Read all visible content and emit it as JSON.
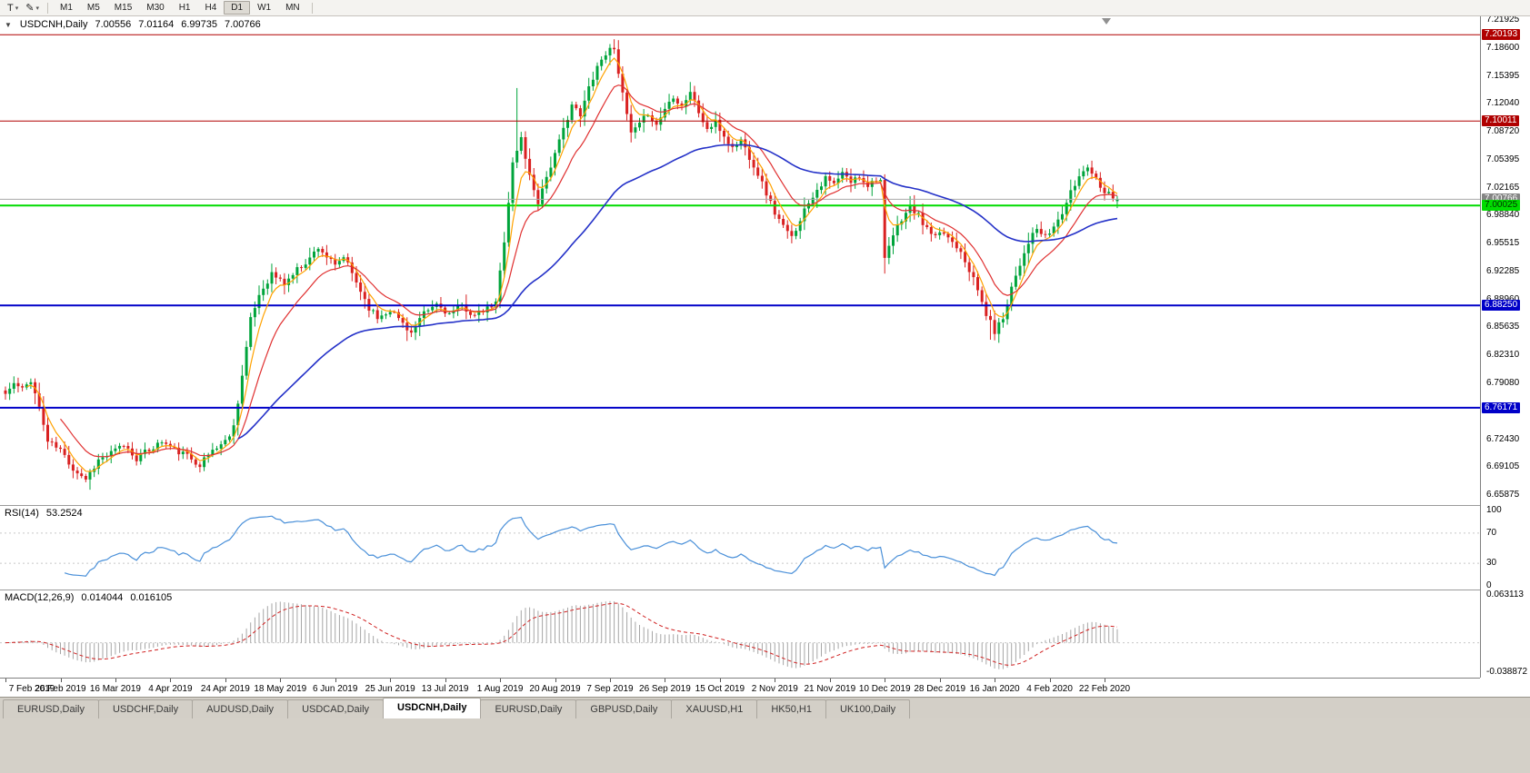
{
  "toolbar": {
    "tool_buttons": [
      {
        "label": "T",
        "name": "text-cursor-tool"
      },
      {
        "label": "✎",
        "name": "drawing-tools"
      }
    ],
    "timeframes": [
      "M1",
      "M5",
      "M15",
      "M30",
      "H1",
      "H4",
      "D1",
      "W1",
      "MN"
    ],
    "active_timeframe": "D1"
  },
  "chart": {
    "title": {
      "symbol_period": "USDCNH,Daily",
      "open": "7.00556",
      "high": "7.01164",
      "low": "6.99735",
      "close": "7.00766"
    },
    "price_axis_ticks": [
      "7.21925",
      "7.18600",
      "7.15395",
      "7.12040",
      "7.08720",
      "7.05395",
      "7.02165",
      "6.98840",
      "6.95515",
      "6.92285",
      "6.88960",
      "6.85635",
      "6.82310",
      "6.79080",
      "6.75755",
      "6.72430",
      "6.69105",
      "6.65875"
    ],
    "hlines": [
      {
        "price": 7.20193,
        "label": "7.20193",
        "color": "#B00000",
        "width": 1,
        "style": "solid",
        "label_bg": "#B00000",
        "label_fg": "#FFFFFF"
      },
      {
        "price": 7.10011,
        "label": "7.10011",
        "color": "#B00000",
        "width": 1,
        "style": "solid",
        "label_bg": "#B00000",
        "label_fg": "#FFFFFF"
      },
      {
        "price": 7.00766,
        "label": "7.00766",
        "color": "#A8A8A8",
        "width": 1,
        "style": "solid",
        "label_bg": "#848484",
        "label_fg": "#FFFFFF"
      },
      {
        "price": 7.00025,
        "label": "7.00025",
        "color": "#00DC00",
        "width": 2,
        "style": "solid",
        "label_bg": "#00DC00",
        "label_fg": "#003300"
      },
      {
        "price": 6.8825,
        "label": "6.88250",
        "color": "#0000C8",
        "width": 2,
        "style": "solid",
        "label_bg": "#0000C8",
        "label_fg": "#FFFFFF"
      },
      {
        "price": 6.76171,
        "label": "6.76171",
        "color": "#0000C8",
        "width": 2,
        "style": "solid",
        "label_bg": "#0000C8",
        "label_fg": "#FFFFFF"
      }
    ],
    "colors": {
      "bull": "#00A43B",
      "bear": "#D92121",
      "background": "#FFFFFF",
      "axis_text": "#000000"
    }
  },
  "rsi": {
    "label": "RSI(14)",
    "value": "53.2524",
    "axis_ticks": [
      "100",
      "70",
      "30",
      "0"
    ],
    "level_lines": [
      70,
      30
    ],
    "line_color": "#4A90D9"
  },
  "macd": {
    "label": "MACD(12,26,9)",
    "value_main": "0.014044",
    "value_signal": "0.016105",
    "axis_top": "0.063113",
    "axis_bottom": "-0.038872",
    "histogram_color": "#A6A6A6",
    "signal_color": "#D02020"
  },
  "time_axis": {
    "labels": [
      {
        "text": "7 Feb 2019",
        "i": 0
      },
      {
        "text": "26 Feb 2019",
        "i": 13
      },
      {
        "text": "16 Mar 2019",
        "i": 26
      },
      {
        "text": "4 Apr 2019",
        "i": 39
      },
      {
        "text": "24 Apr 2019",
        "i": 52
      },
      {
        "text": "18 May 2019",
        "i": 65
      },
      {
        "text": "6 Jun 2019",
        "i": 78
      },
      {
        "text": "25 Jun 2019",
        "i": 91
      },
      {
        "text": "13 Jul 2019",
        "i": 104
      },
      {
        "text": "1 Aug 2019",
        "i": 117
      },
      {
        "text": "20 Aug 2019",
        "i": 130
      },
      {
        "text": "7 Sep 2019",
        "i": 143
      },
      {
        "text": "26 Sep 2019",
        "i": 156
      },
      {
        "text": "15 Oct 2019",
        "i": 169
      },
      {
        "text": "2 Nov 2019",
        "i": 182
      },
      {
        "text": "21 Nov 2019",
        "i": 195
      },
      {
        "text": "10 Dec 2019",
        "i": 208
      },
      {
        "text": "28 Dec 2019",
        "i": 221
      },
      {
        "text": "16 Jan 2020",
        "i": 234
      },
      {
        "text": "4 Feb 2020",
        "i": 247
      },
      {
        "text": "22 Feb 2020",
        "i": 260
      }
    ]
  },
  "tabs": {
    "items": [
      "EURUSD,Daily",
      "USDCHF,Daily",
      "AUDUSD,Daily",
      "USDCAD,Daily",
      "USDCNH,Daily",
      "EURUSD,Daily",
      "GBPUSD,Daily",
      "XAUUSD,H1",
      "HK50,H1",
      "UK100,Daily"
    ],
    "active_index": 4
  },
  "chart_data": {
    "type": "candlestick",
    "symbol": "USDCNH",
    "timeframe": "Daily",
    "title": "USDCNH,Daily 7.00556 7.01164 6.99735 7.00766",
    "x_range": [
      "7 Feb 2019",
      "22 Feb 2020"
    ],
    "y_range": [
      6.65875,
      7.21925
    ],
    "visible_ohlc_readout": {
      "open": 7.00556,
      "high": 7.01164,
      "low": 6.99735,
      "close": 7.00766
    },
    "num_candles": 264,
    "close_waypoints": [
      [
        0,
        6.778
      ],
      [
        2,
        6.79
      ],
      [
        4,
        6.783
      ],
      [
        6,
        6.795
      ],
      [
        8,
        6.762
      ],
      [
        10,
        6.722
      ],
      [
        13,
        6.712
      ],
      [
        16,
        6.69
      ],
      [
        19,
        6.678
      ],
      [
        22,
        6.7
      ],
      [
        25,
        6.708
      ],
      [
        28,
        6.718
      ],
      [
        31,
        6.702
      ],
      [
        34,
        6.712
      ],
      [
        37,
        6.722
      ],
      [
        40,
        6.712
      ],
      [
        43,
        6.705
      ],
      [
        46,
        6.695
      ],
      [
        49,
        6.712
      ],
      [
        52,
        6.722
      ],
      [
        54,
        6.74
      ],
      [
        56,
        6.8
      ],
      [
        58,
        6.865
      ],
      [
        60,
        6.895
      ],
      [
        63,
        6.92
      ],
      [
        66,
        6.908
      ],
      [
        69,
        6.925
      ],
      [
        72,
        6.938
      ],
      [
        74,
        6.952
      ],
      [
        76,
        6.94
      ],
      [
        78,
        6.928
      ],
      [
        80,
        6.94
      ],
      [
        82,
        6.92
      ],
      [
        84,
        6.9
      ],
      [
        86,
        6.88
      ],
      [
        88,
        6.868
      ],
      [
        91,
        6.878
      ],
      [
        94,
        6.862
      ],
      [
        96,
        6.85
      ],
      [
        99,
        6.872
      ],
      [
        102,
        6.884
      ],
      [
        105,
        6.872
      ],
      [
        108,
        6.882
      ],
      [
        111,
        6.87
      ],
      [
        114,
        6.878
      ],
      [
        116,
        6.885
      ],
      [
        118,
        6.96
      ],
      [
        120,
        7.05
      ],
      [
        122,
        7.08
      ],
      [
        124,
        7.035
      ],
      [
        126,
        7.005
      ],
      [
        128,
        7.035
      ],
      [
        130,
        7.06
      ],
      [
        132,
        7.09
      ],
      [
        134,
        7.12
      ],
      [
        136,
        7.105
      ],
      [
        138,
        7.14
      ],
      [
        140,
        7.165
      ],
      [
        142,
        7.18
      ],
      [
        144,
        7.188
      ],
      [
        146,
        7.13
      ],
      [
        148,
        7.085
      ],
      [
        150,
        7.095
      ],
      [
        152,
        7.11
      ],
      [
        154,
        7.095
      ],
      [
        156,
        7.115
      ],
      [
        158,
        7.13
      ],
      [
        160,
        7.118
      ],
      [
        162,
        7.135
      ],
      [
        164,
        7.11
      ],
      [
        166,
        7.09
      ],
      [
        168,
        7.098
      ],
      [
        170,
        7.082
      ],
      [
        172,
        7.068
      ],
      [
        174,
        7.078
      ],
      [
        176,
        7.058
      ],
      [
        178,
        7.038
      ],
      [
        180,
        7.015
      ],
      [
        182,
        6.992
      ],
      [
        184,
        6.975
      ],
      [
        186,
        6.962
      ],
      [
        188,
        6.985
      ],
      [
        190,
        7.005
      ],
      [
        192,
        7.02
      ],
      [
        194,
        7.032
      ],
      [
        196,
        7.025
      ],
      [
        198,
        7.038
      ],
      [
        200,
        7.028
      ],
      [
        202,
        7.035
      ],
      [
        204,
        7.025
      ],
      [
        206,
        7.032
      ],
      [
        207,
        7.03
      ],
      [
        208,
        6.935
      ],
      [
        210,
        6.965
      ],
      [
        212,
        6.985
      ],
      [
        214,
        6.998
      ],
      [
        216,
        6.988
      ],
      [
        218,
        6.972
      ],
      [
        220,
        6.962
      ],
      [
        222,
        6.968
      ],
      [
        224,
        6.958
      ],
      [
        226,
        6.948
      ],
      [
        228,
        6.925
      ],
      [
        230,
        6.9
      ],
      [
        232,
        6.872
      ],
      [
        234,
        6.852
      ],
      [
        236,
        6.868
      ],
      [
        238,
        6.905
      ],
      [
        240,
        6.932
      ],
      [
        242,
        6.958
      ],
      [
        244,
        6.972
      ],
      [
        246,
        6.962
      ],
      [
        248,
        6.975
      ],
      [
        250,
        6.992
      ],
      [
        252,
        7.015
      ],
      [
        254,
        7.035
      ],
      [
        256,
        7.048
      ],
      [
        258,
        7.032
      ],
      [
        260,
        7.018
      ],
      [
        263,
        7.008
      ]
    ],
    "wick_overrides": [
      [
        121,
        "h",
        7.139
      ],
      [
        144,
        "h",
        7.1965
      ],
      [
        208,
        "l",
        6.92
      ],
      [
        233,
        "l",
        6.842
      ]
    ],
    "noise_seed": 11,
    "noise_amp": 0.0038,
    "moving_averages": [
      {
        "type": "ema",
        "period": 5,
        "color": "#FFA200"
      },
      {
        "type": "ema",
        "period": 13,
        "color": "#E03030"
      },
      {
        "type": "ema",
        "period": 55,
        "color": "#2431C8"
      }
    ],
    "horizontal_lines": [
      7.20193,
      7.10011,
      7.00766,
      7.00025,
      6.8825,
      6.76171
    ],
    "indicators": [
      {
        "name": "RSI",
        "period": 14,
        "current": 53.2524,
        "scale": [
          0,
          100
        ],
        "levels": [
          30,
          70
        ]
      },
      {
        "name": "MACD",
        "fast": 12,
        "slow": 26,
        "signal": 9,
        "current_main": 0.014044,
        "current_signal": 0.016105,
        "scale": [
          -0.038872,
          0.063113
        ]
      }
    ]
  }
}
